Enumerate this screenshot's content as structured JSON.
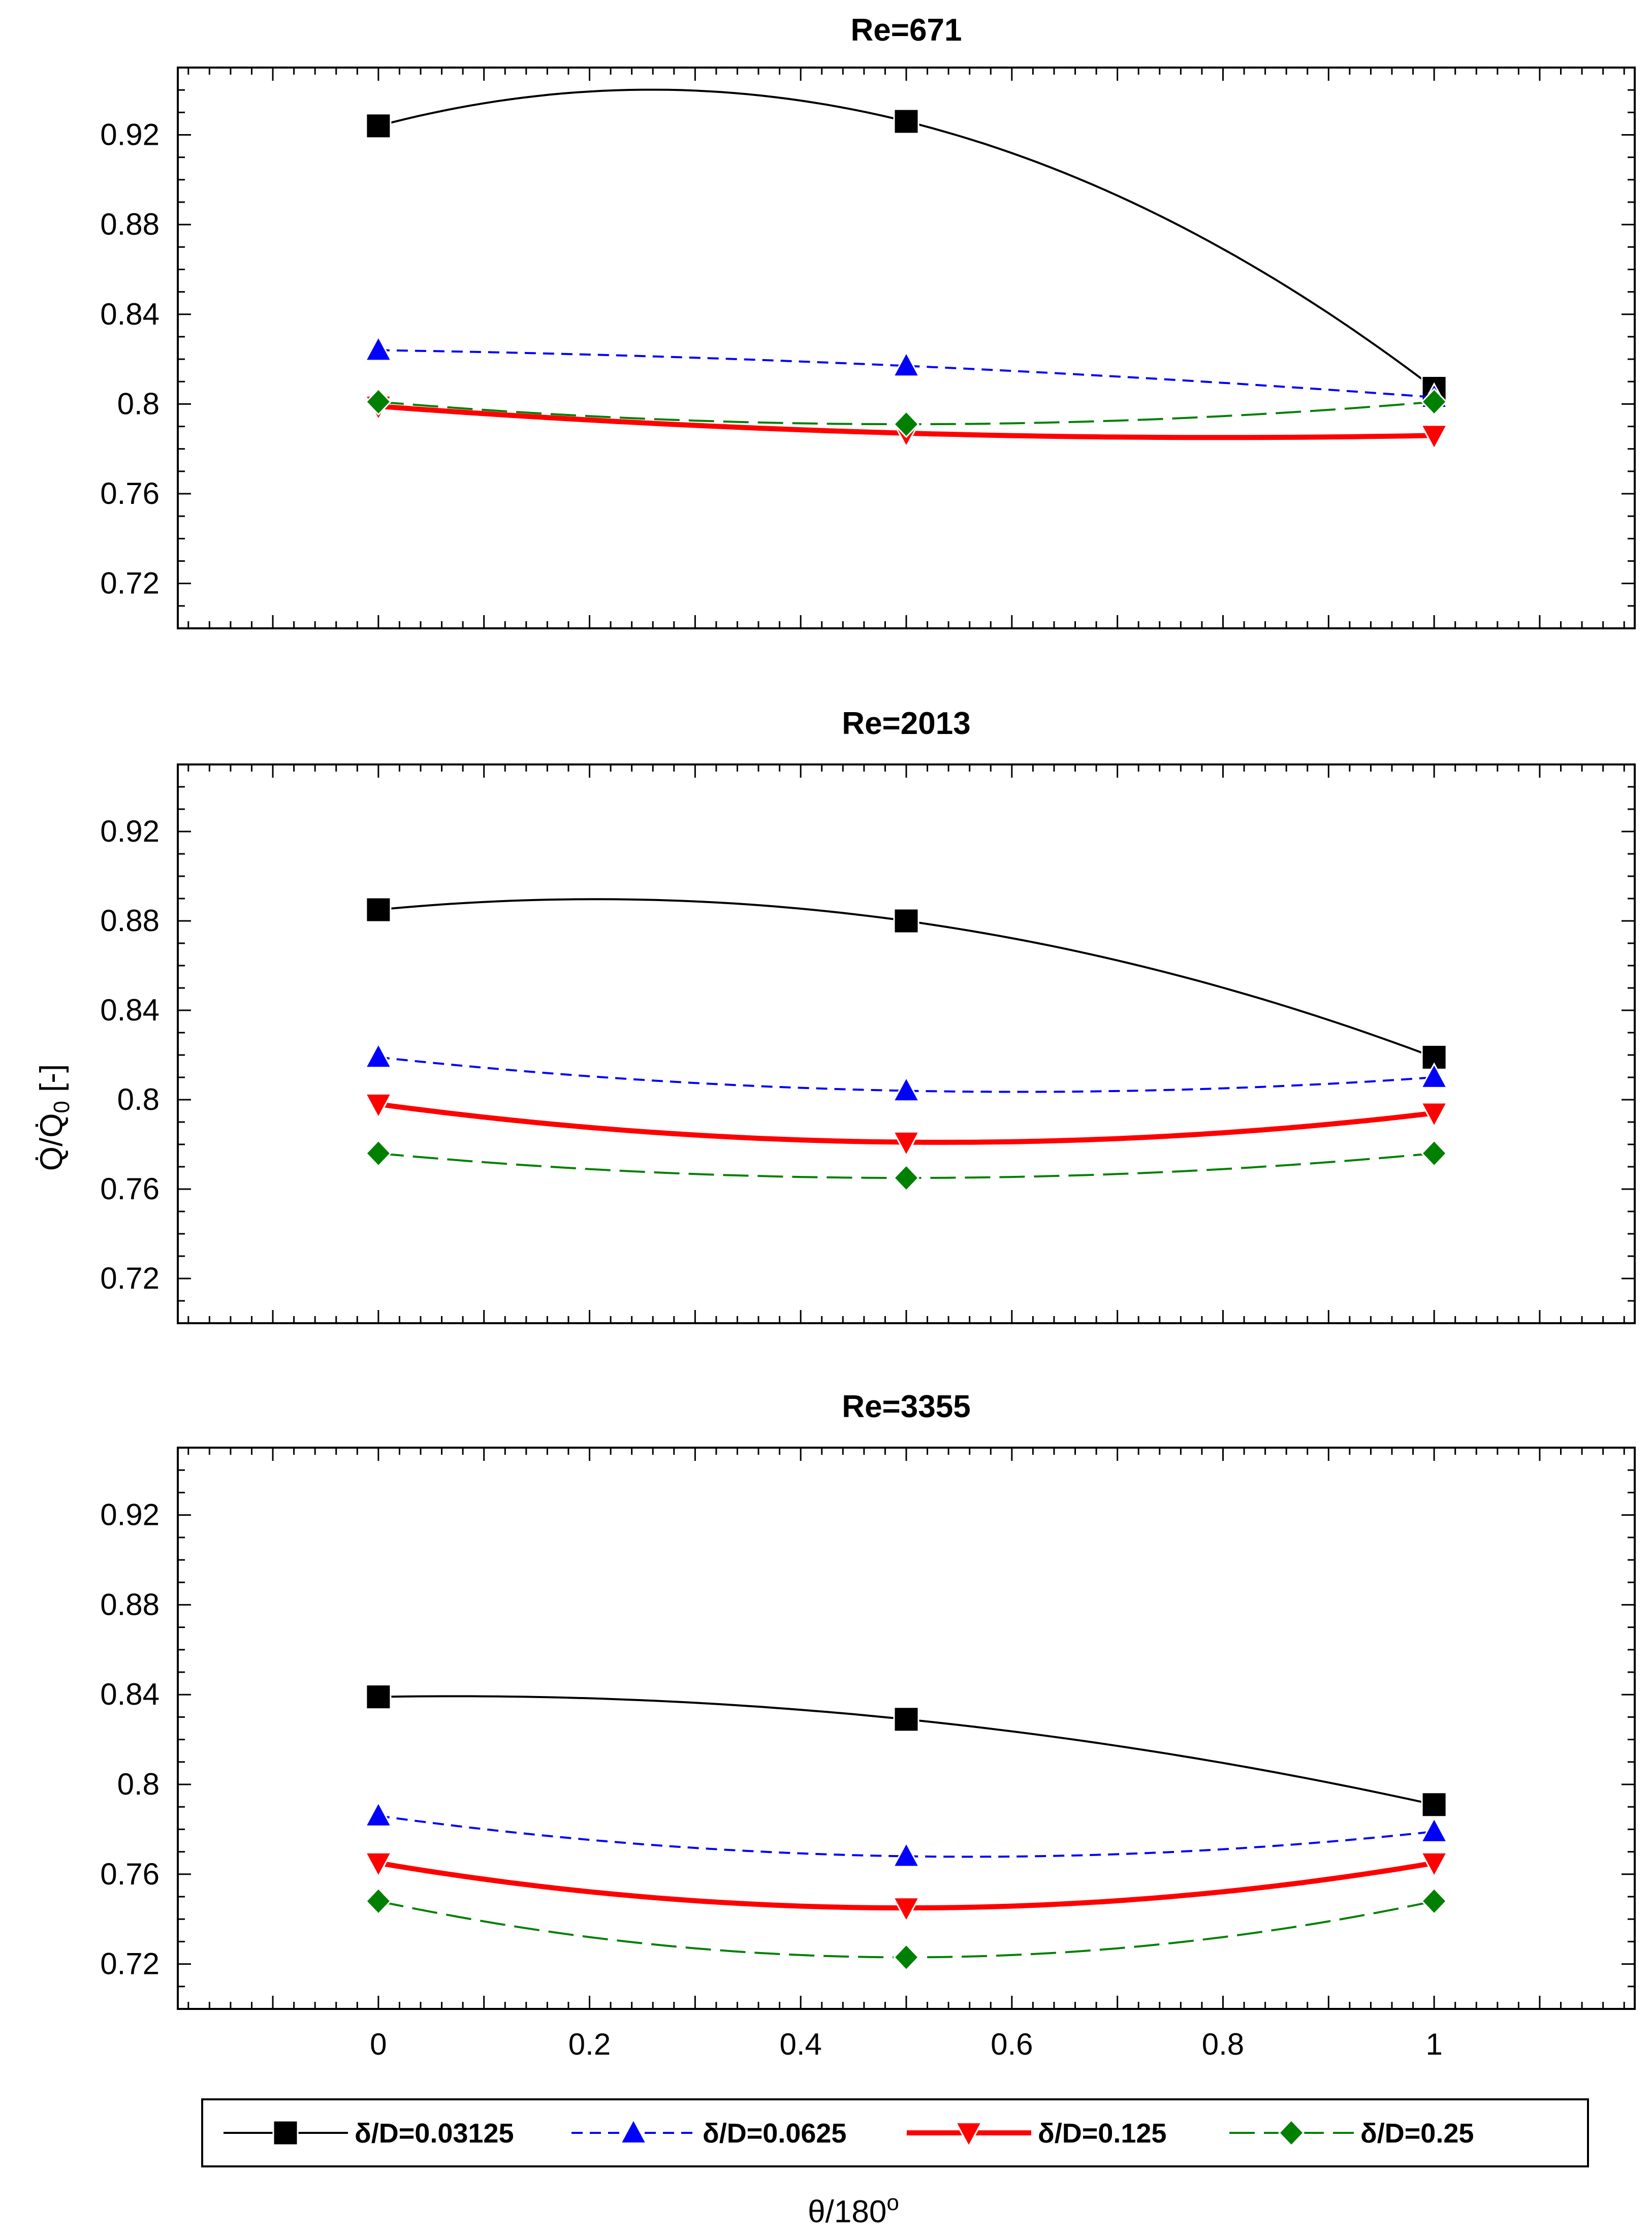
{
  "chart_data": [
    {
      "type": "line",
      "title": "Re=671",
      "xlabel": "",
      "ylabel": "",
      "x": [
        0,
        0.5,
        1
      ],
      "xlim": [
        -0.19,
        1.19
      ],
      "ylim": [
        0.7,
        0.95
      ],
      "yticks": [
        0.72,
        0.76,
        0.8,
        0.84,
        0.88,
        0.92
      ],
      "ytick_labels": [
        "0.72",
        "0.76",
        "0.8",
        "0.84",
        "0.88",
        "0.92"
      ],
      "show_x_tick_labels": false,
      "series": [
        {
          "name": "δ/D=0.03125",
          "values": [
            0.924,
            0.926,
            0.807
          ]
        },
        {
          "name": "δ/D=0.0625",
          "values": [
            0.824,
            0.817,
            0.803
          ]
        },
        {
          "name": "δ/D=0.125",
          "values": [
            0.799,
            0.787,
            0.786
          ]
        },
        {
          "name": "δ/D=0.25",
          "values": [
            0.801,
            0.791,
            0.801
          ]
        }
      ]
    },
    {
      "type": "line",
      "title": "Re=2013",
      "xlabel": "",
      "ylabel": "Q̇/Q̇0 [-]",
      "x": [
        0,
        0.5,
        1
      ],
      "xlim": [
        -0.19,
        1.19
      ],
      "ylim": [
        0.7,
        0.95
      ],
      "yticks": [
        0.72,
        0.76,
        0.8,
        0.84,
        0.88,
        0.92
      ],
      "ytick_labels": [
        "0.72",
        "0.76",
        "0.8",
        "0.84",
        "0.88",
        "0.92"
      ],
      "show_x_tick_labels": false,
      "series": [
        {
          "name": "δ/D=0.03125",
          "values": [
            0.885,
            0.88,
            0.819
          ]
        },
        {
          "name": "δ/D=0.0625",
          "values": [
            0.819,
            0.804,
            0.81
          ]
        },
        {
          "name": "δ/D=0.125",
          "values": [
            0.798,
            0.781,
            0.794
          ]
        },
        {
          "name": "δ/D=0.25",
          "values": [
            0.776,
            0.765,
            0.776
          ]
        }
      ]
    },
    {
      "type": "line",
      "title": "Re=3355",
      "xlabel": "θ/180o",
      "ylabel": "",
      "x": [
        0,
        0.5,
        1
      ],
      "xlim": [
        -0.19,
        1.19
      ],
      "ylim": [
        0.7,
        0.95
      ],
      "xticks": [
        0,
        0.2,
        0.4,
        0.6,
        0.8,
        1
      ],
      "xtick_labels": [
        "0",
        "0.2",
        "0.4",
        "0.6",
        "0.8",
        "1"
      ],
      "yticks": [
        0.72,
        0.76,
        0.8,
        0.84,
        0.88,
        0.92
      ],
      "ytick_labels": [
        "0.72",
        "0.76",
        "0.8",
        "0.84",
        "0.88",
        "0.92"
      ],
      "show_x_tick_labels": true,
      "series": [
        {
          "name": "δ/D=0.03125",
          "values": [
            0.839,
            0.829,
            0.791
          ]
        },
        {
          "name": "δ/D=0.0625",
          "values": [
            0.786,
            0.768,
            0.779
          ]
        },
        {
          "name": "δ/D=0.125",
          "values": [
            0.765,
            0.745,
            0.765
          ]
        },
        {
          "name": "δ/D=0.25",
          "values": [
            0.748,
            0.723,
            0.748
          ]
        }
      ]
    }
  ],
  "legend": {
    "placement": "bottom",
    "entries": [
      {
        "label": "δ/D=0.03125",
        "color": "#000000",
        "marker": "square",
        "line": "solid"
      },
      {
        "label": "δ/D=0.0625",
        "color": "#0000ff",
        "marker": "triangle-up",
        "line": "dashed"
      },
      {
        "label": "δ/D=0.125",
        "color": "#ff0000",
        "marker": "triangle-down",
        "line": "solid-thick"
      },
      {
        "label": "δ/D=0.25",
        "color": "#008000",
        "marker": "diamond",
        "line": "long-dashed"
      }
    ]
  },
  "labels": {
    "ylabel_main": "Q̇/Q̇",
    "ylabel_sub": "0",
    "ylabel_unit": " [-]",
    "xlabel_main": "θ/180",
    "xlabel_sup": "o"
  }
}
